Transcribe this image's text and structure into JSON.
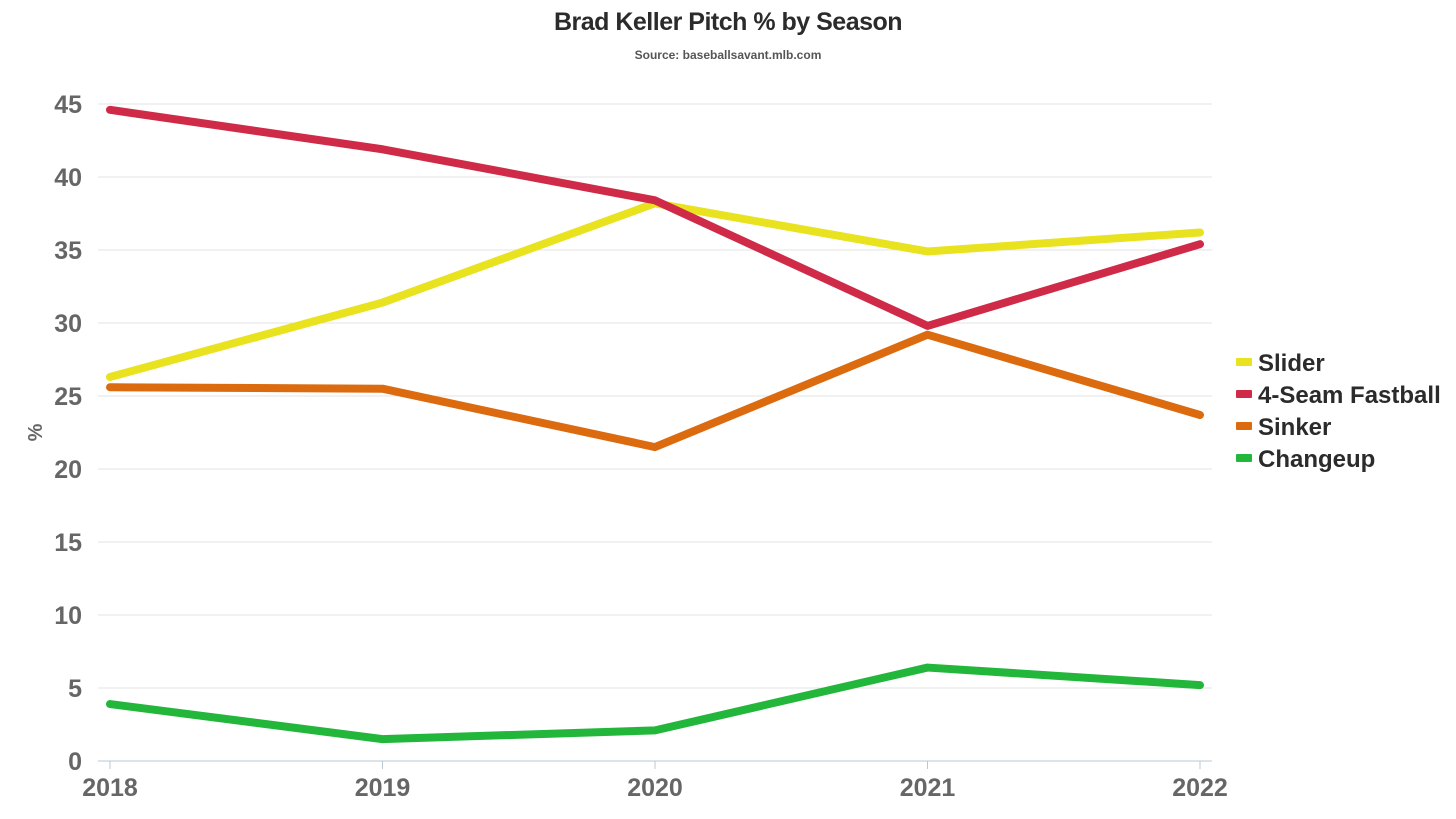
{
  "chart_data": {
    "type": "line",
    "title": "Brad Keller Pitch % by Season",
    "subtitle": "Source: baseballsavant.mlb.com",
    "xlabel": "",
    "ylabel": "%",
    "x": [
      "2018",
      "2019",
      "2020",
      "2021",
      "2022"
    ],
    "ylim": [
      0,
      45
    ],
    "yticks": [
      0,
      5,
      10,
      15,
      20,
      25,
      30,
      35,
      40,
      45
    ],
    "grid": true,
    "legend_position": "right",
    "series": [
      {
        "name": "Slider",
        "color": "#e8e21f",
        "values": [
          26.3,
          31.4,
          38.2,
          34.9,
          36.2
        ]
      },
      {
        "name": "4-Seam Fastball",
        "color": "#cf2a48",
        "values": [
          44.6,
          41.9,
          38.4,
          29.8,
          35.4
        ]
      },
      {
        "name": "Sinker",
        "color": "#dc6a0e",
        "values": [
          25.6,
          25.5,
          21.5,
          29.2,
          23.7
        ]
      },
      {
        "name": "Changeup",
        "color": "#22b63b",
        "values": [
          3.9,
          1.5,
          2.1,
          6.4,
          5.2
        ]
      }
    ]
  }
}
